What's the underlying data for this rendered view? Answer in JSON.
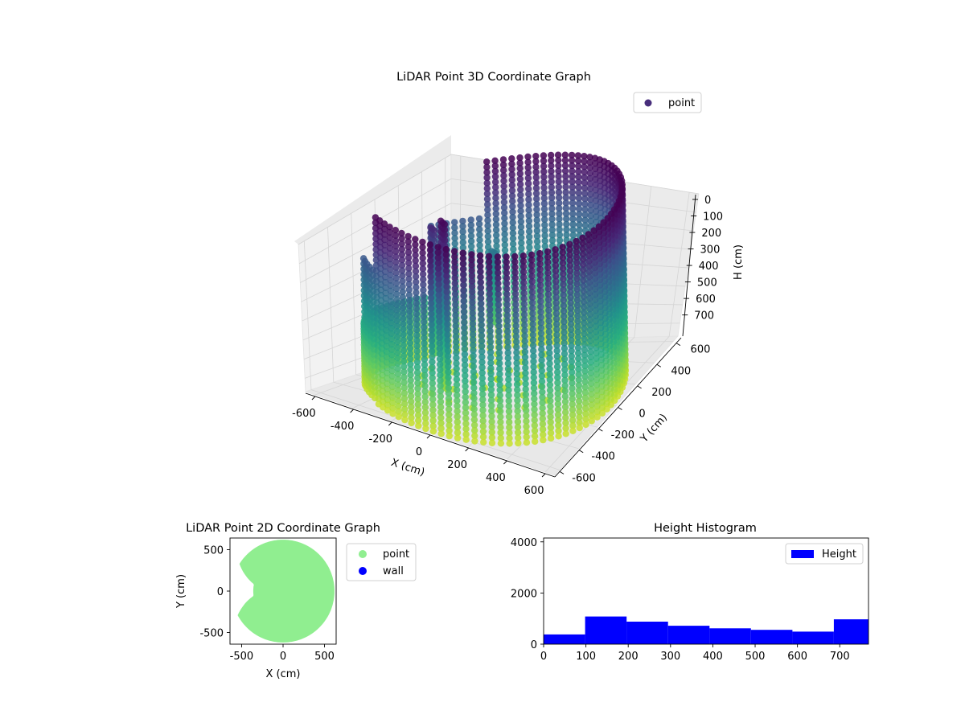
{
  "chart_data": [
    {
      "type": "scatter",
      "projection": "3d",
      "title": "LiDAR Point 3D Coordinate Graph",
      "xlabel": "X (cm)",
      "ylabel": "Y (cm)",
      "zlabel": "H (cm)",
      "xticks": [
        -600,
        -400,
        -200,
        0,
        200,
        400,
        600
      ],
      "yticks": [
        -600,
        -400,
        -200,
        0,
        200,
        400,
        600
      ],
      "zticks": [
        0,
        100,
        200,
        300,
        400,
        500,
        600,
        700
      ],
      "xlim": [
        -650,
        650
      ],
      "ylim": [
        -650,
        650
      ],
      "zlim": [
        770,
        0
      ],
      "z_inverted": true,
      "grid": true,
      "colormap": "viridis",
      "legend": {
        "entries": [
          "point"
        ],
        "placement": "top-right"
      },
      "legend_color": "#472d7b",
      "shape": "cylindrical wall of points",
      "wall_radius": 620,
      "height_range": [
        0,
        770
      ],
      "opening_angle_range_deg": [
        125,
        235
      ],
      "interior_structures": [
        {
          "x": -120,
          "y": -300,
          "h_top": 20,
          "h_bottom": 720
        },
        {
          "x": -280,
          "y": -120,
          "h_top": 120,
          "h_bottom": 640
        },
        {
          "x": -400,
          "y": 150,
          "h_top": 300,
          "h_bottom": 600
        },
        {
          "x": -230,
          "y": 360,
          "h_top": 330,
          "h_bottom": 620
        }
      ]
    },
    {
      "type": "scatter",
      "title": "LiDAR Point 2D Coordinate Graph",
      "xlabel": "X (cm)",
      "ylabel": "Y (cm)",
      "xticks": [
        -500,
        0,
        500
      ],
      "yticks": [
        -500,
        0,
        500
      ],
      "xlim": [
        -640,
        640
      ],
      "ylim": [
        -640,
        640
      ],
      "series": [
        {
          "name": "point",
          "color": "#90ee90"
        },
        {
          "name": "wall",
          "color": "#0000ff"
        }
      ],
      "legend_placement": "outside right",
      "filled_region": {
        "radius": 620,
        "notch_angle_range_deg": [
          148,
          208
        ],
        "notch_inner_radius": 360
      }
    },
    {
      "type": "bar",
      "title": "Height Histogram",
      "series": [
        {
          "name": "Height",
          "color": "#0000ff"
        }
      ],
      "bins": [
        {
          "start": 0,
          "end": 98,
          "count": 380
        },
        {
          "start": 98,
          "end": 196,
          "count": 1080
        },
        {
          "start": 196,
          "end": 294,
          "count": 880
        },
        {
          "start": 294,
          "end": 392,
          "count": 720
        },
        {
          "start": 392,
          "end": 490,
          "count": 620
        },
        {
          "start": 490,
          "end": 588,
          "count": 560
        },
        {
          "start": 588,
          "end": 686,
          "count": 490
        },
        {
          "start": 686,
          "end": 780,
          "count": 970
        }
      ],
      "xticks": [
        0,
        100,
        200,
        300,
        400,
        500,
        600,
        700
      ],
      "yticks": [
        0,
        2000,
        4000
      ],
      "xlim": [
        0,
        768
      ],
      "ylim": [
        0,
        4150
      ],
      "legend_placement": "top-right"
    }
  ]
}
